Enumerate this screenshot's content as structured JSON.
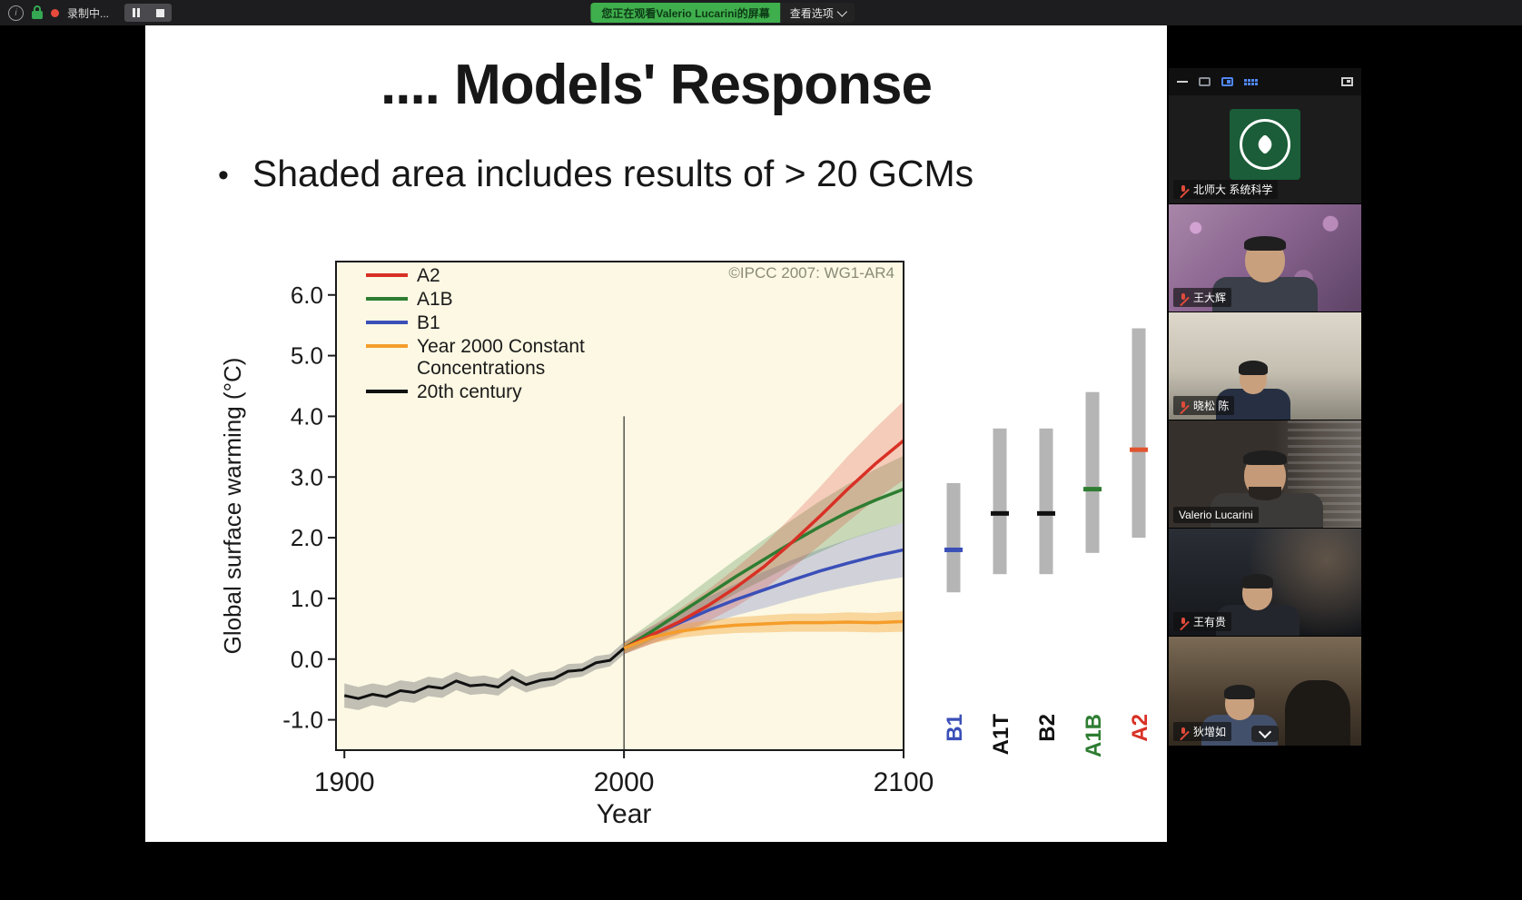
{
  "top_bar": {
    "record_status": "录制中...",
    "banner_text": "您正在观看Valerio Lucarini的屏幕",
    "view_options_label": "查看选项",
    "colors": {
      "banner_green": "#3fae4c",
      "record_red": "#e64b3c",
      "lock_green": "#34a853"
    }
  },
  "slide": {
    "title": ".... Models' Response",
    "bullet_marker": "•",
    "bullet_text": "Shaded area includes results of > 20 GCMs"
  },
  "chart_data": {
    "type": "line",
    "title": "",
    "xlabel": "Year",
    "ylabel": "Global surface warming (°C)",
    "annotation": "©IPCC 2007: WG1-AR4",
    "plot_bg": "#FCF8E3",
    "bar_color": "#b5b5b5",
    "xlim": [
      1897,
      2100
    ],
    "ylim": [
      -1.5,
      6.55
    ],
    "xticks": [
      1900,
      2000,
      2100
    ],
    "yticks": [
      -1.0,
      0.0,
      1.0,
      2.0,
      3.0,
      4.0,
      5.0,
      6.0
    ],
    "grid": false,
    "legend_position": "upper-left",
    "vline": {
      "x": 2000,
      "y1": -1.5,
      "y2": 4.0
    },
    "series": [
      {
        "name": "20th century",
        "color": "#111111",
        "band_color": "rgba(125,125,125,0.45)",
        "x": [
          1900,
          1905,
          1910,
          1915,
          1920,
          1925,
          1930,
          1935,
          1940,
          1945,
          1950,
          1955,
          1960,
          1965,
          1970,
          1975,
          1980,
          1985,
          1990,
          1995,
          2000
        ],
        "y": [
          -0.6,
          -0.65,
          -0.58,
          -0.62,
          -0.52,
          -0.55,
          -0.45,
          -0.48,
          -0.36,
          -0.44,
          -0.42,
          -0.46,
          -0.3,
          -0.42,
          -0.35,
          -0.32,
          -0.2,
          -0.18,
          -0.06,
          -0.02,
          0.18
        ],
        "band": [
          0.2,
          0.19,
          0.18,
          0.18,
          0.17,
          0.17,
          0.16,
          0.16,
          0.15,
          0.15,
          0.15,
          0.14,
          0.14,
          0.13,
          0.13,
          0.12,
          0.12,
          0.11,
          0.11,
          0.1,
          0.1
        ]
      },
      {
        "name": "B1",
        "color": "#3b4fb8",
        "band_color": "rgba(59,79,184,0.22)",
        "x": [
          2000,
          2010,
          2020,
          2030,
          2040,
          2050,
          2060,
          2070,
          2080,
          2090,
          2100
        ],
        "y": [
          0.18,
          0.4,
          0.6,
          0.8,
          0.98,
          1.14,
          1.3,
          1.45,
          1.58,
          1.7,
          1.8
        ],
        "band": [
          0.1,
          0.14,
          0.18,
          0.22,
          0.26,
          0.3,
          0.33,
          0.36,
          0.39,
          0.42,
          0.45
        ]
      },
      {
        "name": "A1B",
        "color": "#2e7d32",
        "band_color": "rgba(46,125,50,0.25)",
        "x": [
          2000,
          2010,
          2020,
          2030,
          2040,
          2050,
          2060,
          2070,
          2080,
          2090,
          2100
        ],
        "y": [
          0.18,
          0.46,
          0.76,
          1.06,
          1.36,
          1.64,
          1.92,
          2.18,
          2.42,
          2.62,
          2.8
        ],
        "band": [
          0.1,
          0.15,
          0.19,
          0.24,
          0.28,
          0.33,
          0.37,
          0.42,
          0.46,
          0.51,
          0.55
        ]
      },
      {
        "name": "A2",
        "color": "#d93025",
        "band_color": "rgba(217,48,37,0.22)",
        "x": [
          2000,
          2010,
          2020,
          2030,
          2040,
          2050,
          2060,
          2070,
          2080,
          2090,
          2100
        ],
        "y": [
          0.18,
          0.4,
          0.62,
          0.88,
          1.18,
          1.52,
          1.92,
          2.35,
          2.8,
          3.22,
          3.6
        ],
        "band": [
          0.1,
          0.15,
          0.21,
          0.26,
          0.32,
          0.37,
          0.43,
          0.48,
          0.54,
          0.59,
          0.65
        ]
      },
      {
        "name": "Year 2000 Constant Concentrations",
        "color": "#f59d2b",
        "band_color": "rgba(245,157,43,0.38)",
        "x": [
          2000,
          2010,
          2020,
          2030,
          2040,
          2050,
          2060,
          2070,
          2080,
          2090,
          2100
        ],
        "y": [
          0.18,
          0.36,
          0.46,
          0.52,
          0.56,
          0.58,
          0.6,
          0.6,
          0.61,
          0.6,
          0.62
        ],
        "band": [
          0.08,
          0.1,
          0.11,
          0.12,
          0.13,
          0.14,
          0.15,
          0.15,
          0.16,
          0.16,
          0.17
        ]
      }
    ],
    "legend": [
      {
        "lines": [
          "A2"
        ],
        "color": "#d93025"
      },
      {
        "lines": [
          "A1B"
        ],
        "color": "#2e7d32"
      },
      {
        "lines": [
          "B1"
        ],
        "color": "#3b4fb8"
      },
      {
        "lines": [
          "Year 2000 Constant",
          "Concentrations"
        ],
        "color": "#f59d2b"
      },
      {
        "lines": [
          "20th century"
        ],
        "color": "#111111"
      }
    ],
    "right_bars": [
      {
        "label": "B1",
        "lo": 1.1,
        "hi": 2.9,
        "mark": 1.8,
        "color": "#3b4fb8",
        "label_color": "#3b4fb8"
      },
      {
        "label": "A1T",
        "lo": 1.4,
        "hi": 3.8,
        "mark": 2.4,
        "color": "#111111",
        "label_color": "#111111"
      },
      {
        "label": "B2",
        "lo": 1.4,
        "hi": 3.8,
        "mark": 2.4,
        "color": "#111111",
        "label_color": "#111111"
      },
      {
        "label": "A1B",
        "lo": 1.75,
        "hi": 4.4,
        "mark": 2.8,
        "color": "#2e7d32",
        "label_color": "#2e7d32"
      },
      {
        "label": "A2",
        "lo": 2.0,
        "hi": 5.45,
        "mark": 3.45,
        "color": "#e0532f",
        "label_color": "#d93025"
      }
    ]
  },
  "participants": {
    "tiles": [
      {
        "name": "北师大 系统科学",
        "muted": true,
        "type": "logo"
      },
      {
        "name": "王大辉",
        "muted": true,
        "type": "video"
      },
      {
        "name": "晓松 陈",
        "muted": true,
        "type": "video"
      },
      {
        "name": "Valerio Lucarini",
        "muted": false,
        "type": "video",
        "active_speaker": true
      },
      {
        "name": "王有贵",
        "muted": true,
        "type": "video"
      },
      {
        "name": "狄增如",
        "muted": true,
        "type": "video",
        "partially_visible": true
      }
    ]
  }
}
